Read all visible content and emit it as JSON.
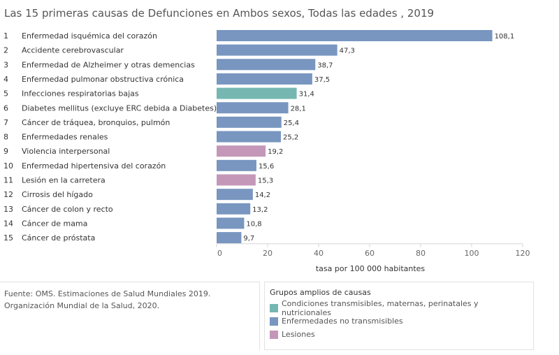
{
  "title": "Las 15 primeras causas de Defunciones en Ambos sexos, Todas las edades , 2019",
  "chart_data": {
    "type": "bar",
    "orientation": "horizontal",
    "title": "Las 15 primeras causas de Defunciones en Ambos sexos, Todas las edades , 2019",
    "xlabel": "tasa por 100 000 habitantes",
    "ylabel": "",
    "xlim": [
      0,
      120
    ],
    "ticks": [
      0,
      20,
      40,
      60,
      80,
      100,
      120
    ],
    "tick_labels": [
      "0",
      "20",
      "40",
      "60",
      "80",
      "100",
      "120"
    ],
    "ranks": [
      "1",
      "2",
      "3",
      "4",
      "5",
      "6",
      "7",
      "8",
      "9",
      "10",
      "11",
      "12",
      "13",
      "14",
      "15"
    ],
    "categories": [
      "Enfermedad isquémica del corazón",
      "Accidente cerebrovascular",
      "Enfermedad de Alzheimer y otras demencias",
      "Enfermedad pulmonar obstructiva crónica",
      "Infecciones respiratorias bajas",
      "Diabetes mellitus (excluye ERC debida a Diabetes)",
      "Cáncer de tráquea, bronquios, pulmón",
      "Enfermedades renales",
      "Violencia interpersonal",
      "Enfermedad hipertensiva del corazón",
      "Lesión en la carretera",
      "Cirrosis del hígado",
      "Cáncer de colon y recto",
      "Cáncer de mama",
      "Cáncer de próstata"
    ],
    "values": [
      108.1,
      47.3,
      38.7,
      37.5,
      31.4,
      28.1,
      25.4,
      25.2,
      19.2,
      15.6,
      15.3,
      14.2,
      13.2,
      10.8,
      9.7
    ],
    "value_labels": [
      "108,1",
      "47,3",
      "38,7",
      "37,5",
      "31,4",
      "28,1",
      "25,4",
      "25,2",
      "19,2",
      "15,6",
      "15,3",
      "14,2",
      "13,2",
      "10,8",
      "9,7"
    ],
    "groups": [
      "nt",
      "nt",
      "nt",
      "nt",
      "tr",
      "nt",
      "nt",
      "nt",
      "les",
      "nt",
      "les",
      "nt",
      "nt",
      "nt",
      "nt"
    ],
    "legend_placement": "bottom-right",
    "grid": false
  },
  "group_colors": {
    "tr": "#76b7b2",
    "nt": "#7896bf",
    "les": "#c497b8"
  },
  "source": {
    "label": "Fuente:",
    "text": " OMS. Estimaciones de Salud Mundiales 2019. Organización Mundial de la Salud, 2020."
  },
  "legend": {
    "title": "Grupos amplios de causas",
    "items": [
      {
        "key": "tr",
        "label": "Condiciones transmisibles, maternas, perinatales y nutricionales"
      },
      {
        "key": "nt",
        "label": "Enfermedades no transmisibles"
      },
      {
        "key": "les",
        "label": "Lesiones"
      }
    ]
  }
}
